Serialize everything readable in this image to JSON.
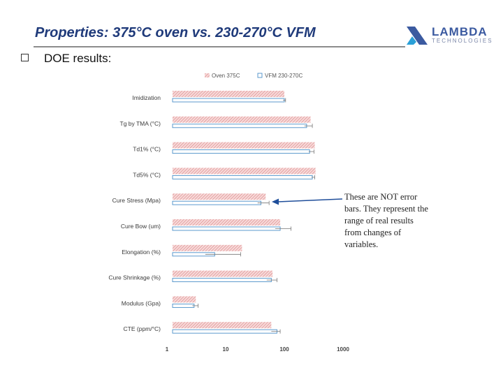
{
  "slide": {
    "title": "Properties: 375°C oven vs. 230-270°C VFM",
    "bullet_text": "DOE results:",
    "callout_text": "These are NOT error bars. They represent the range of real results from changes of variables."
  },
  "logo": {
    "name": "LAMBDA",
    "tagline": "TECHNOLOGIES"
  },
  "colors": {
    "title": "#1f3a7a",
    "oven_bar": "#e8a8a8",
    "vfm_bar": "#4a8fc8",
    "arrow": "#1f4e9a"
  },
  "chart_data": {
    "type": "bar",
    "orientation": "horizontal",
    "x_scale": "log",
    "xlim": [
      1,
      1000
    ],
    "x_ticks": [
      1,
      10,
      100,
      1000
    ],
    "x_tick_labels": [
      "1",
      "10",
      "100",
      "1000"
    ],
    "grid": false,
    "legend_position": "top",
    "categories": [
      "Imidization",
      "Tg by TMA (°C)",
      "Td1% (°C)",
      "Td5% (°C)",
      "Cure Stress (Mpa)",
      "Cure Bow (um)",
      "Elongation (%)",
      "Cure Shrinkage (%)",
      "Modulus (Gpa)",
      "CTE (ppm/°C)"
    ],
    "series": [
      {
        "name": "Oven 375C",
        "values": [
          100,
          280,
          330,
          340,
          48,
          85,
          19,
          63,
          3.1,
          60
        ]
      },
      {
        "name": "VFM 230-270C",
        "values": [
          100,
          240,
          270,
          300,
          40,
          85,
          6.5,
          60,
          2.9,
          75
        ],
        "range_low": [
          95,
          220,
          260,
          290,
          35,
          70,
          4.5,
          50,
          2.7,
          60
        ],
        "range_high": [
          105,
          300,
          320,
          330,
          55,
          130,
          18,
          75,
          3.4,
          85
        ]
      }
    ]
  }
}
